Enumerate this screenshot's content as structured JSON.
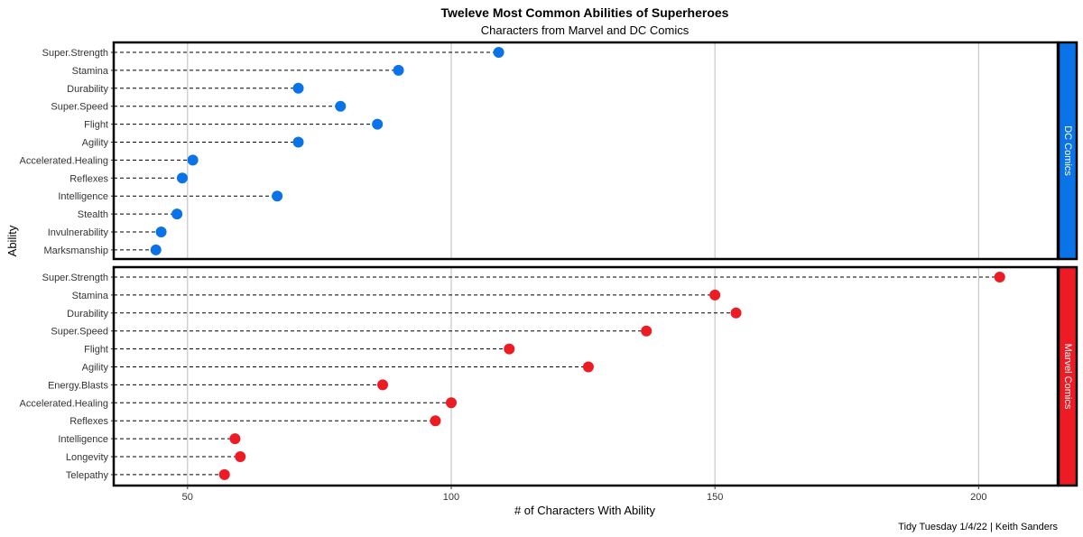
{
  "chart_data": {
    "type": "scatter",
    "title": "Tweleve Most Common Abilities of Superheroes",
    "subtitle": "Characters from Marvel and DC Comics",
    "xlabel": "# of Characters With Ability",
    "ylabel": "Ability",
    "caption": "Tidy Tuesday 1/4/22 | Keith Sanders",
    "xlim": [
      36,
      215
    ],
    "x_ticks": [
      50,
      100,
      150,
      200
    ],
    "grid": "vertical major lines",
    "panels": [
      {
        "name": "DC Comics",
        "color": "#0a73e8",
        "categories": [
          "Super.Strength",
          "Stamina",
          "Durability",
          "Super.Speed",
          "Flight",
          "Agility",
          "Accelerated.Healing",
          "Reflexes",
          "Intelligence",
          "Stealth",
          "Invulnerability",
          "Marksmanship"
        ],
        "values": [
          109,
          90,
          71,
          79,
          86,
          71,
          51,
          49,
          67,
          48,
          45,
          44
        ]
      },
      {
        "name": "Marvel Comics",
        "color": "#ec1b24",
        "categories": [
          "Super.Strength",
          "Stamina",
          "Durability",
          "Super.Speed",
          "Flight",
          "Agility",
          "Energy.Blasts",
          "Accelerated.Healing",
          "Reflexes",
          "Intelligence",
          "Longevity",
          "Telepathy"
        ],
        "values": [
          204,
          150,
          154,
          137,
          111,
          126,
          87,
          100,
          97,
          59,
          60,
          57
        ]
      }
    ]
  }
}
